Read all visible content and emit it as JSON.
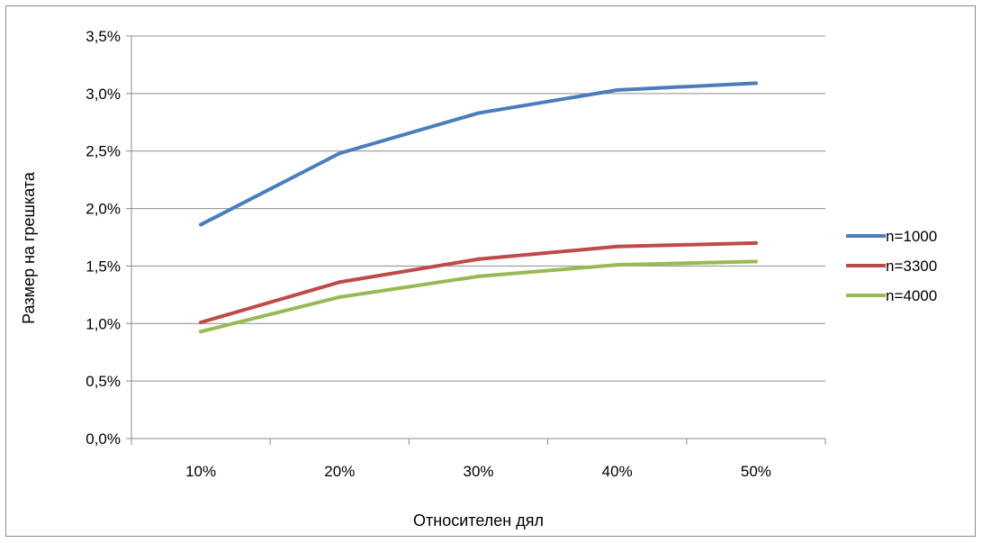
{
  "chart_data": {
    "type": "line",
    "title": "",
    "xlabel": "Относителен дял",
    "ylabel": "Размер на грешката",
    "categories": [
      "10%",
      "20%",
      "30%",
      "40%",
      "50%"
    ],
    "yticks": [
      "0,0%",
      "0,5%",
      "1,0%",
      "1,5%",
      "2,0%",
      "2,5%",
      "3,0%",
      "3,5%"
    ],
    "ylim": [
      0,
      3.5
    ],
    "grid": true,
    "legend_position": "right",
    "series": [
      {
        "name": "n=1000",
        "color": "#4a7ebb",
        "values": [
          1.86,
          2.48,
          2.83,
          3.03,
          3.09
        ]
      },
      {
        "name": "n=3300",
        "color": "#be4b48",
        "values": [
          1.01,
          1.36,
          1.56,
          1.67,
          1.7
        ]
      },
      {
        "name": "n=4000",
        "color": "#98b954",
        "values": [
          0.93,
          1.23,
          1.41,
          1.51,
          1.54
        ]
      }
    ]
  }
}
